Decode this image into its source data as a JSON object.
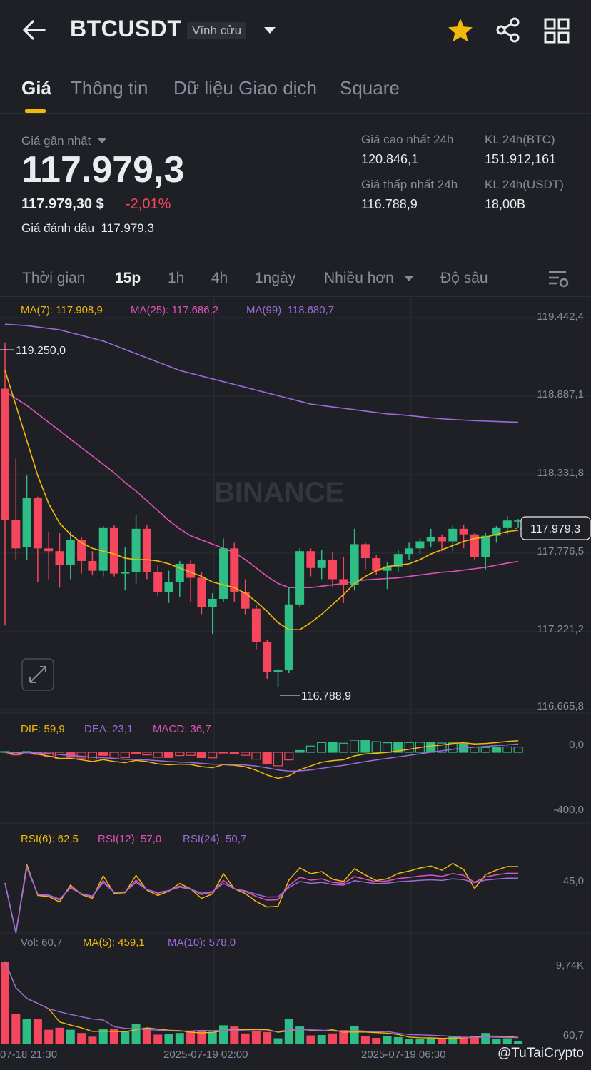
{
  "header": {
    "symbol": "BTCUSDT",
    "contract_type": "Vĩnh cửu",
    "icons": [
      "back-arrow-icon",
      "chevron-down-icon",
      "star-icon",
      "share-icon",
      "grid-menu-icon"
    ]
  },
  "tabs": [
    {
      "label": "Giá"
    },
    {
      "label": "Thông tin"
    },
    {
      "label": "Dữ liệu Giao dịch"
    },
    {
      "label": "Square"
    }
  ],
  "ticker": {
    "last_price_label": "Giá gần nhất",
    "last_price": "117.979,3",
    "usd_price": "117.979,30 $",
    "change_pct": "-2,01%",
    "mark_price_label": "Giá đánh dấu",
    "mark_price": "117.979,3",
    "high_label": "Giá cao nhất 24h",
    "high": "120.846,1",
    "low_label": "Giá thấp nhất 24h",
    "low": "116.788,9",
    "vol_btc_label": "KL 24h(BTC)",
    "vol_btc": "151.912,161",
    "vol_usdt_label": "KL 24h(USDT)",
    "vol_usdt": "18,00B"
  },
  "intervals": {
    "time_label": "Thời gian",
    "items": [
      "15p",
      "1h",
      "4h",
      "1ngày"
    ],
    "selected": "15p",
    "more_label": "Nhiều hơn",
    "depth_label": "Độ sâu"
  },
  "indicators": {
    "ma7": "MA(7): 117.908,9",
    "ma25": "MA(25): 117.686,2",
    "ma99": "MA(99): 118.680,7",
    "dif": "DIF: 59,9",
    "dea": "DEA: 23,1",
    "macd": "MACD: 36,7",
    "rsi6": "RSI(6): 62,5",
    "rsi12": "RSI(12): 57,0",
    "rsi24": "RSI(24): 50,7",
    "vol": "Vol: 60,7",
    "vma5": "MA(5): 459,1",
    "vma10": "MA(10): 578,0"
  },
  "axis": {
    "price_ticks": [
      "119.442,4",
      "118.887,1",
      "118.331,8",
      "117.776,5",
      "117.221,2",
      "116.665,8"
    ],
    "current_price_tag": "117.979,3",
    "high_marker": "119.250,0",
    "low_marker": "116.788,9",
    "macd_ticks": [
      "0,0",
      "-400,0"
    ],
    "rsi_ticks": [
      "45,0"
    ],
    "vol_ticks": [
      "9,74K",
      "60,7"
    ],
    "time_labels": [
      "07-18 21:30",
      "2025-07-19 02:00",
      "2025-07-19 06:30"
    ]
  },
  "watermark": "BINANCE",
  "attribution": "@TuTaiCrypto",
  "colors": {
    "up": "#2ebd85",
    "down": "#f6465d",
    "ma7": "#f0b90b",
    "ma25": "#e052b8",
    "ma99": "#9c6bdb",
    "accent": "#f0b90b"
  },
  "chart_data": {
    "type": "candlestick",
    "symbol": "BTCUSDT",
    "interval": "15p",
    "ylim": [
      116665.8,
      119442.4
    ],
    "candles": [
      {
        "o": 118920,
        "h": 119250,
        "l": 117230,
        "c": 117980
      },
      {
        "o": 117980,
        "h": 118420,
        "l": 117700,
        "c": 117780
      },
      {
        "o": 117790,
        "h": 118300,
        "l": 117700,
        "c": 118140
      },
      {
        "o": 118140,
        "h": 118150,
        "l": 117540,
        "c": 117780
      },
      {
        "o": 117780,
        "h": 117900,
        "l": 117560,
        "c": 117760
      },
      {
        "o": 117760,
        "h": 117890,
        "l": 117500,
        "c": 117660
      },
      {
        "o": 117660,
        "h": 117900,
        "l": 117560,
        "c": 117840
      },
      {
        "o": 117840,
        "h": 117860,
        "l": 117600,
        "c": 117690
      },
      {
        "o": 117690,
        "h": 117760,
        "l": 117590,
        "c": 117620
      },
      {
        "o": 117620,
        "h": 117940,
        "l": 117580,
        "c": 117930
      },
      {
        "o": 117930,
        "h": 117950,
        "l": 117580,
        "c": 117600
      },
      {
        "o": 117600,
        "h": 117790,
        "l": 117480,
        "c": 117610
      },
      {
        "o": 117610,
        "h": 118020,
        "l": 117530,
        "c": 117920
      },
      {
        "o": 117920,
        "h": 117950,
        "l": 117560,
        "c": 117610
      },
      {
        "o": 117610,
        "h": 117660,
        "l": 117440,
        "c": 117470
      },
      {
        "o": 117470,
        "h": 117620,
        "l": 117390,
        "c": 117540
      },
      {
        "o": 117540,
        "h": 117690,
        "l": 117430,
        "c": 117670
      },
      {
        "o": 117670,
        "h": 117700,
        "l": 117400,
        "c": 117570
      },
      {
        "o": 117570,
        "h": 117610,
        "l": 117310,
        "c": 117360
      },
      {
        "o": 117360,
        "h": 117460,
        "l": 117170,
        "c": 117420
      },
      {
        "o": 117420,
        "h": 117850,
        "l": 117400,
        "c": 117780
      },
      {
        "o": 117780,
        "h": 117820,
        "l": 117400,
        "c": 117470
      },
      {
        "o": 117470,
        "h": 117560,
        "l": 117310,
        "c": 117350
      },
      {
        "o": 117350,
        "h": 117380,
        "l": 117060,
        "c": 117110
      },
      {
        "o": 117110,
        "h": 117130,
        "l": 116850,
        "c": 116900
      },
      {
        "o": 116900,
        "h": 116920,
        "l": 116789,
        "c": 116910
      },
      {
        "o": 116910,
        "h": 117500,
        "l": 116890,
        "c": 117380
      },
      {
        "o": 117380,
        "h": 117780,
        "l": 117360,
        "c": 117760
      },
      {
        "o": 117760,
        "h": 117780,
        "l": 117580,
        "c": 117640
      },
      {
        "o": 117640,
        "h": 117770,
        "l": 117560,
        "c": 117700
      },
      {
        "o": 117700,
        "h": 117750,
        "l": 117500,
        "c": 117560
      },
      {
        "o": 117560,
        "h": 117720,
        "l": 117390,
        "c": 117520
      },
      {
        "o": 117520,
        "h": 117920,
        "l": 117480,
        "c": 117810
      },
      {
        "o": 117810,
        "h": 117820,
        "l": 117630,
        "c": 117710
      },
      {
        "o": 117710,
        "h": 117730,
        "l": 117590,
        "c": 117620
      },
      {
        "o": 117620,
        "h": 117680,
        "l": 117490,
        "c": 117650
      },
      {
        "o": 117650,
        "h": 117770,
        "l": 117610,
        "c": 117740
      },
      {
        "o": 117740,
        "h": 117820,
        "l": 117700,
        "c": 117780
      },
      {
        "o": 117780,
        "h": 117850,
        "l": 117740,
        "c": 117830
      },
      {
        "o": 117830,
        "h": 117920,
        "l": 117790,
        "c": 117860
      },
      {
        "o": 117860,
        "h": 117880,
        "l": 117760,
        "c": 117830
      },
      {
        "o": 117830,
        "h": 117940,
        "l": 117760,
        "c": 117920
      },
      {
        "o": 117920,
        "h": 117950,
        "l": 117780,
        "c": 117880
      },
      {
        "o": 117880,
        "h": 117890,
        "l": 117700,
        "c": 117720
      },
      {
        "o": 117720,
        "h": 117890,
        "l": 117630,
        "c": 117870
      },
      {
        "o": 117870,
        "h": 117940,
        "l": 117820,
        "c": 117930
      },
      {
        "o": 117930,
        "h": 118010,
        "l": 117880,
        "c": 117979
      },
      {
        "o": 117979,
        "h": 117990,
        "l": 117930,
        "c": 117979
      }
    ],
    "ma7": [
      119050,
      118800,
      118550,
      118300,
      118100,
      117960,
      117880,
      117820,
      117780,
      117760,
      117740,
      117710,
      117700,
      117700,
      117690,
      117670,
      117640,
      117610,
      117580,
      117540,
      117520,
      117500,
      117460,
      117400,
      117330,
      117250,
      117200,
      117200,
      117250,
      117310,
      117380,
      117450,
      117530,
      117580,
      117620,
      117650,
      117660,
      117670,
      117700,
      117740,
      117770,
      117800,
      117830,
      117850,
      117860,
      117880,
      117900,
      117908.9
    ],
    "ma25": [
      118900,
      118850,
      118800,
      118740,
      118680,
      118620,
      118560,
      118500,
      118440,
      118380,
      118320,
      118250,
      118190,
      118120,
      118050,
      117980,
      117920,
      117870,
      117840,
      117810,
      117780,
      117750,
      117700,
      117640,
      117580,
      117530,
      117500,
      117500,
      117500,
      117510,
      117520,
      117530,
      117545,
      117555,
      117560,
      117565,
      117570,
      117580,
      117590,
      117600,
      117610,
      117615,
      117625,
      117635,
      117645,
      117660,
      117675,
      117686.2
    ],
    "ma99": [
      119380,
      119375,
      119370,
      119360,
      119350,
      119340,
      119320,
      119300,
      119280,
      119260,
      119230,
      119200,
      119170,
      119140,
      119110,
      119080,
      119050,
      119030,
      119010,
      118990,
      118970,
      118950,
      118930,
      118910,
      118890,
      118870,
      118850,
      118830,
      118810,
      118800,
      118790,
      118780,
      118770,
      118760,
      118750,
      118740,
      118735,
      118728,
      118720,
      118712,
      118705,
      118700,
      118696,
      118692,
      118689,
      118686,
      118683,
      118680.7
    ]
  }
}
